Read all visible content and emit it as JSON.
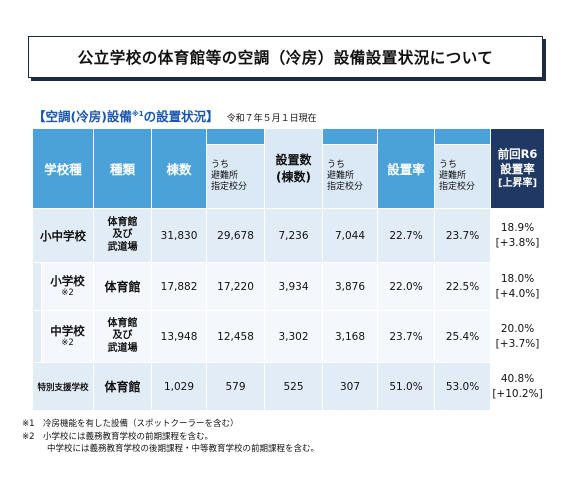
{
  "title": "公立学校の体育館等の空調（冷房）設備設置状況について",
  "subtitle": {
    "prefix": "【空調(冷房)設備",
    "mark": "※1",
    "suffix": "の設置状況】",
    "date": "令和７年５月１日現在"
  },
  "table": {
    "headers": {
      "school_type": "学校種",
      "kind": "種類",
      "buildings": "棟数",
      "uchi": "うち",
      "evac1": "避難所",
      "desig1": "指定校分",
      "installed_top": "設置数",
      "installed_bottom": "(棟数)",
      "rate": "設置率",
      "prev_line1": "前回R6",
      "prev_line2": "設置率",
      "prev_line3": "[上昇率]"
    },
    "rows": [
      {
        "school": "小中学校",
        "school_note": "",
        "kind_lines": [
          "体育館",
          "及び",
          "武道場"
        ],
        "buildings": "31,830",
        "buildings_evac": "29,678",
        "installed": "7,236",
        "installed_evac": "7,044",
        "rate": "22.7%",
        "rate_evac": "23.7%",
        "prev_rate": "18.9%",
        "prev_change": "[+3.8%]"
      },
      {
        "school": "小学校",
        "school_note": "※2",
        "kind_lines": [
          "体育館"
        ],
        "buildings": "17,882",
        "buildings_evac": "17,220",
        "installed": "3,934",
        "installed_evac": "3,876",
        "rate": "22.0%",
        "rate_evac": "22.5%",
        "prev_rate": "18.0%",
        "prev_change": "[+4.0%]"
      },
      {
        "school": "中学校",
        "school_note": "※2",
        "kind_lines": [
          "体育館",
          "及び",
          "武道場"
        ],
        "buildings": "13,948",
        "buildings_evac": "12,458",
        "installed": "3,302",
        "installed_evac": "3,168",
        "rate": "23.7%",
        "rate_evac": "25.4%",
        "prev_rate": "20.0%",
        "prev_change": "[+3.7%]"
      },
      {
        "school": "特別支援学校",
        "school_note": "",
        "kind_lines": [
          "体育館"
        ],
        "buildings": "1,029",
        "buildings_evac": "579",
        "installed": "525",
        "installed_evac": "307",
        "rate": "51.0%",
        "rate_evac": "53.0%",
        "prev_rate": "40.8%",
        "prev_change": "[+10.2%]"
      }
    ]
  },
  "notes": [
    "※1　冷房機能を有した設備（スポットクーラーを含む）",
    "※2　小学校には義務教育学校の前期課程を含む。",
    "中学校には義務教育学校の後期課程・中等教育学校の前期課程を含む。"
  ]
}
